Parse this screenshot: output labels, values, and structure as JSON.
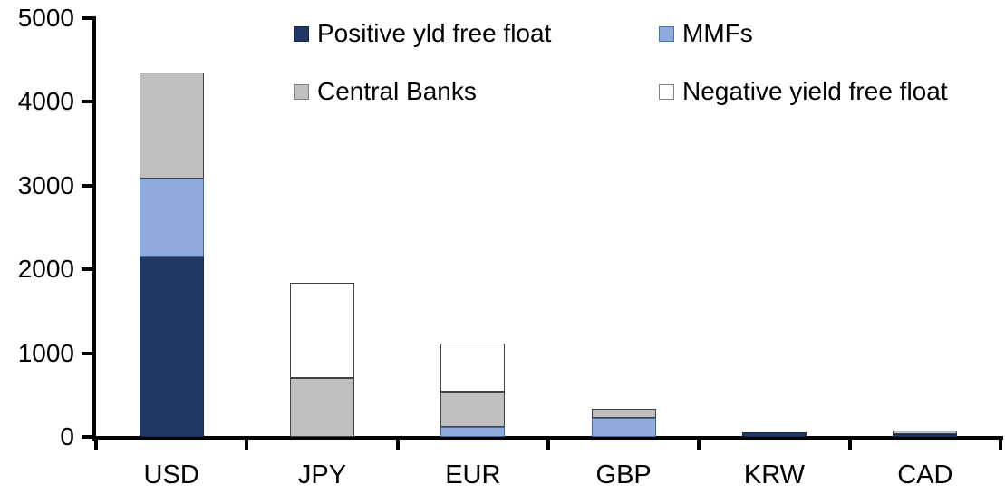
{
  "chart_data": {
    "type": "bar",
    "stacked": true,
    "title": "",
    "xlabel": "",
    "ylabel": "",
    "categories": [
      "USD",
      "JPY",
      "EUR",
      "GBP",
      "KRW",
      "CAD"
    ],
    "series": [
      {
        "name": "Positive yld free float",
        "color": "#1F3864",
        "border": "#16284A",
        "swatch_border": "#16284A",
        "values": [
          2150,
          0,
          0,
          0,
          50,
          35
        ]
      },
      {
        "name": "MMFs",
        "color": "#8FAADC",
        "border": "#44699D",
        "swatch_border": "#4472C4",
        "values": [
          930,
          0,
          120,
          230,
          0,
          0
        ]
      },
      {
        "name": "Central Banks",
        "color": "#BFBFBF",
        "border": "#404040",
        "swatch_border": "#7F7F7F",
        "values": [
          1270,
          700,
          420,
          110,
          0,
          40
        ]
      },
      {
        "name": "Negative yield free float",
        "color": "#FFFFFF",
        "border": "#404040",
        "swatch_border": "#7F7F7F",
        "values": [
          0,
          1140,
          570,
          0,
          0,
          0
        ]
      }
    ],
    "totals": [
      4350,
      1840,
      1110,
      340,
      50,
      75
    ],
    "ylim": [
      0,
      5000
    ],
    "ytick_step": 1000,
    "yticks": [
      "0",
      "1000",
      "2000",
      "3000",
      "4000",
      "5000"
    ],
    "grid": false,
    "legend_position": "top",
    "axis_color": "#000000",
    "background_color": "#FFFFFF"
  }
}
